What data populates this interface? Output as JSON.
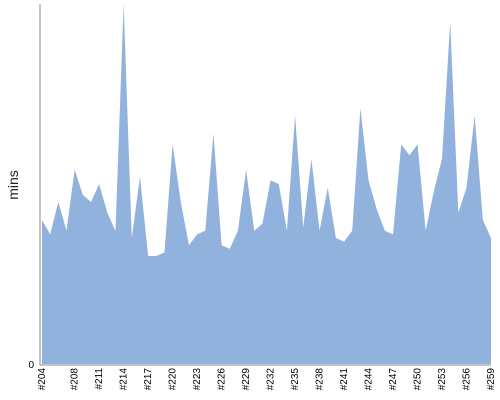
{
  "chart_data": {
    "type": "area",
    "title": "",
    "xlabel": "",
    "ylabel": "mins",
    "ylim": [
      0,
      100
    ],
    "y_ticks": [
      0
    ],
    "grid": false,
    "legend": "none",
    "x": [
      "#204",
      "#205",
      "#206",
      "#207",
      "#208",
      "#209",
      "#210",
      "#211",
      "#212",
      "#213",
      "#214",
      "#215",
      "#216",
      "#217",
      "#218",
      "#219",
      "#220",
      "#221",
      "#222",
      "#223",
      "#224",
      "#225",
      "#226",
      "#227",
      "#228",
      "#229",
      "#230",
      "#231",
      "#232",
      "#233",
      "#234",
      "#235",
      "#236",
      "#237",
      "#238",
      "#239",
      "#240",
      "#241",
      "#242",
      "#243",
      "#244",
      "#245",
      "#246",
      "#247",
      "#248",
      "#249",
      "#250",
      "#251",
      "#252",
      "#253",
      "#254",
      "#255",
      "#256",
      "#257",
      "#258",
      "#259"
    ],
    "x_tick_labels": [
      "#204",
      "#208",
      "#211",
      "#214",
      "#217",
      "#220",
      "#223",
      "#226",
      "#229",
      "#232",
      "#235",
      "#238",
      "#241",
      "#244",
      "#247",
      "#250",
      "#253",
      "#256",
      "#259"
    ],
    "series": [
      {
        "values": [
          40,
          36,
          45,
          37,
          54,
          47,
          45,
          50,
          42,
          37,
          100,
          35,
          52,
          30,
          30,
          31,
          61,
          45,
          33,
          36,
          37,
          64,
          33,
          32,
          37,
          54,
          37,
          39,
          51,
          50,
          37,
          69,
          38,
          57,
          37,
          49,
          35,
          34,
          37,
          71,
          51,
          43,
          37,
          36,
          61,
          58,
          61,
          37,
          48,
          57,
          95,
          42,
          49,
          69,
          40,
          35
        ],
        "color": "#91b2dc"
      }
    ]
  }
}
